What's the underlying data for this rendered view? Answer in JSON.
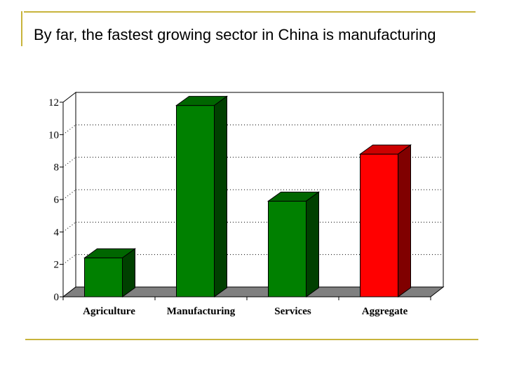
{
  "slide": {
    "title": "By far, the fastest growing sector in China is manufacturing"
  },
  "colors": {
    "accent_rule": "#c8b43c",
    "bar_green": "#008000",
    "bar_red": "#ff0000"
  },
  "chart_data": {
    "type": "bar",
    "categories": [
      "Agriculture",
      "Manufacturing",
      "Services",
      "Aggregate"
    ],
    "values": [
      2.4,
      11.8,
      5.9,
      8.8
    ],
    "bar_colors": [
      "#008000",
      "#008000",
      "#008000",
      "#ff0000"
    ],
    "ylim": [
      0,
      12
    ],
    "yticks": [
      "0",
      "2",
      "4",
      "6",
      "8",
      "10",
      "12"
    ],
    "grid": true,
    "style": "3d"
  }
}
